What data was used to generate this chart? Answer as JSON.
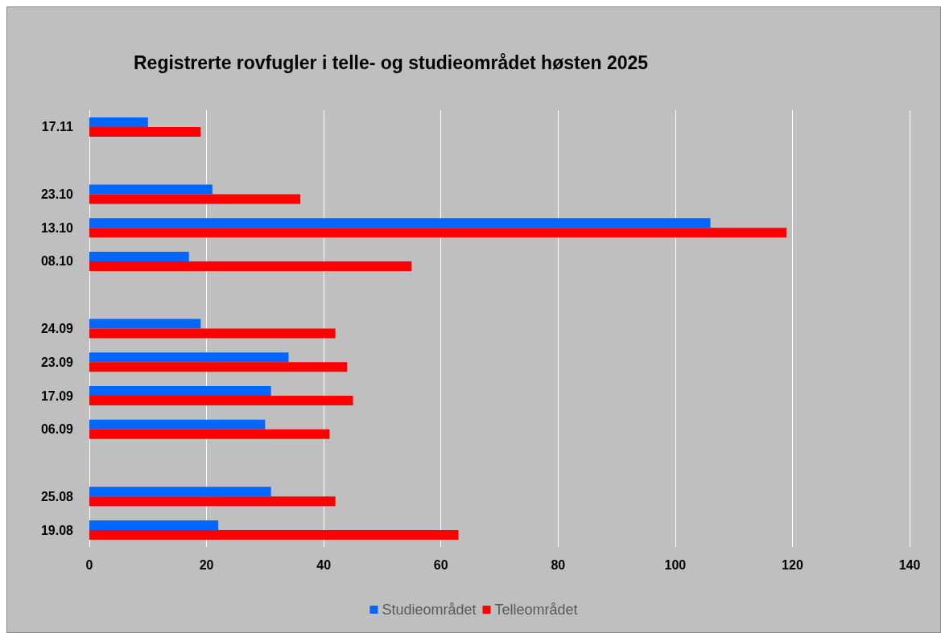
{
  "chart_data": {
    "type": "bar",
    "orientation": "horizontal",
    "title": "Registrerte rovfugler i telle- og studieområdet høsten 2025",
    "categories": [
      "17.11",
      null,
      "23.10",
      "13.10",
      "08.10",
      null,
      "24.09",
      "23.09",
      "17.09",
      "06.09",
      null,
      "25.08",
      "19.08"
    ],
    "series": [
      {
        "name": "Studieområdet",
        "color": "#0066ff",
        "values": [
          10,
          null,
          21,
          106,
          17,
          null,
          19,
          34,
          31,
          30,
          null,
          31,
          22
        ]
      },
      {
        "name": "Telleområdet",
        "color": "#ff0000",
        "values": [
          19,
          null,
          36,
          119,
          55,
          null,
          42,
          44,
          45,
          41,
          null,
          42,
          63
        ]
      }
    ],
    "xlim": [
      0,
      140
    ],
    "xticks": [
      0,
      20,
      40,
      60,
      80,
      100,
      120,
      140
    ],
    "grid": "x",
    "legend": "bottom"
  }
}
